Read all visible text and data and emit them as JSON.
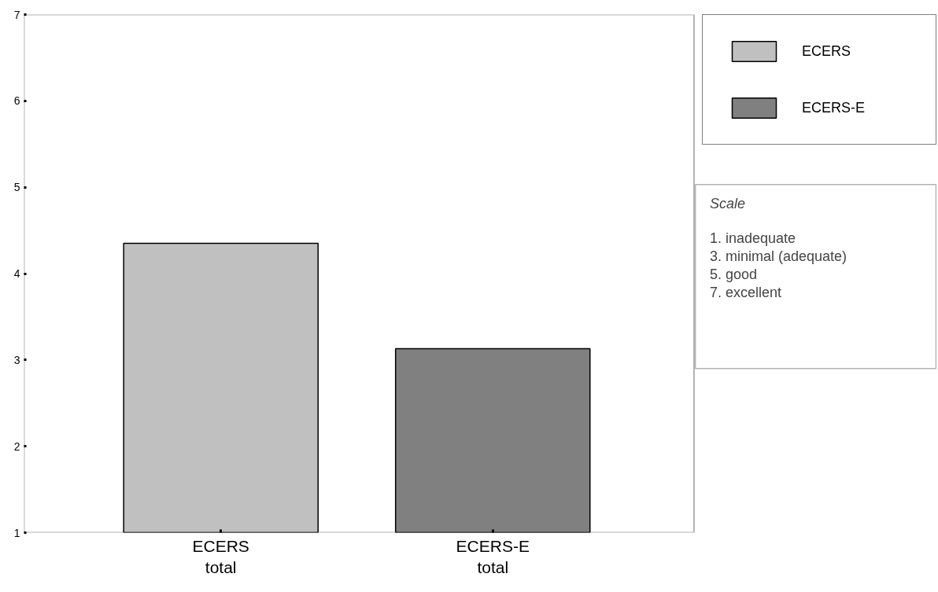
{
  "chart_data": {
    "type": "bar",
    "categories": [
      "ECERS\ntotal",
      "ECERS-E\ntotal"
    ],
    "series": [
      {
        "name": "ECERS",
        "color": "#c0c0c0",
        "values": [
          4.35,
          null
        ]
      },
      {
        "name": "ECERS-E",
        "color": "#808080",
        "values": [
          null,
          3.13
        ]
      }
    ],
    "ylim": [
      1,
      7
    ],
    "yticks": [
      1,
      2,
      3,
      4,
      5,
      6,
      7
    ],
    "grid": false,
    "legend": "top right",
    "annotations": [
      "Scale",
      "1.  inadequate\n3.  minimal (adequate)\n5.  good\n7.  excellent"
    ]
  }
}
